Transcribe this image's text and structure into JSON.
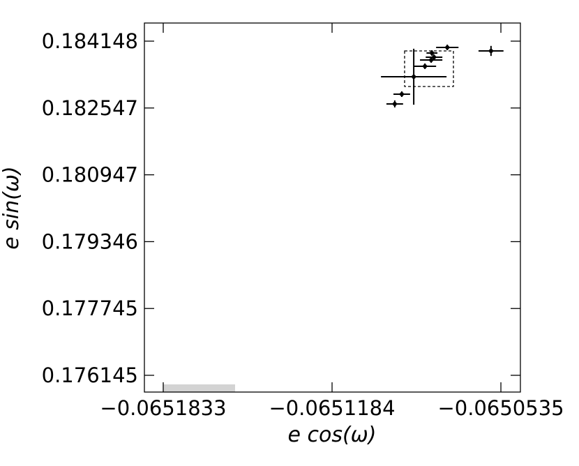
{
  "chart_data": {
    "type": "scatter",
    "x_label": "e cos(ω)",
    "y_label": "e sin(ω)",
    "xlim": [
      -0.06519054,
      -0.065046
    ],
    "ylim": [
      0.175744,
      0.184582
    ],
    "xticks": [
      {
        "value": -0.0651833,
        "label": "−0.0651833"
      },
      {
        "value": -0.0651184,
        "label": "−0.0651184"
      },
      {
        "value": -0.0650535,
        "label": "−0.0650535"
      }
    ],
    "yticks": [
      0.184148,
      0.182547,
      0.180947,
      0.179346,
      0.177745,
      0.176145
    ],
    "color": "#000000",
    "x": [
      -0.0650943,
      -0.0650916,
      -0.065087,
      -0.0650827,
      -0.0650803,
      -0.0650792,
      -0.06508,
      -0.0650741,
      -0.0650573
    ],
    "values": [
      0.1826444,
      0.1828783,
      0.183296,
      0.183547,
      0.183697,
      0.183764,
      0.183864,
      0.183998,
      0.183914
    ],
    "xerr": [
      3.2e-06,
      3.2e-06,
      1.26e-05,
      4.3e-06,
      4.3e-06,
      3.2e-06,
      2.1e-06,
      4.3e-06,
      4.8e-06
    ],
    "yerr": [
      8.4e-05,
      6.7e-05,
      0.00067,
      6.7e-05,
      6.7e-05,
      6.7e-05,
      6.7e-05,
      6.7e-05,
      0.00012
    ]
  }
}
